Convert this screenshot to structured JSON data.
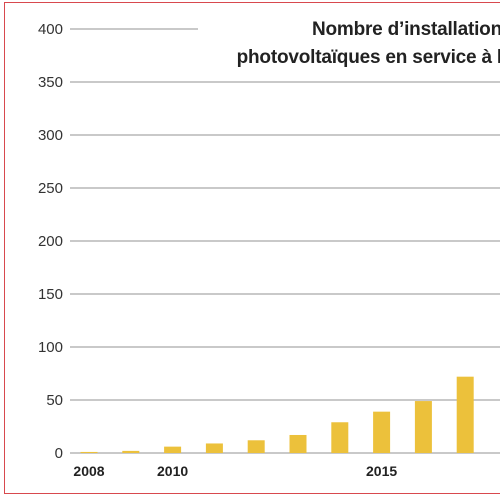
{
  "chart_data": {
    "type": "bar",
    "title_lines": [
      "Nombre d’installation",
      "photovoltaïques en service à l"
    ],
    "x": [
      2008,
      2009,
      2010,
      2011,
      2012,
      2013,
      2014,
      2015,
      2016,
      2017
    ],
    "values": [
      1,
      2,
      6,
      9,
      12,
      17,
      29,
      39,
      49,
      72
    ],
    "x_tick_labels": [
      {
        "year": 2008,
        "label": "2008"
      },
      {
        "year": 2010,
        "label": "2010"
      },
      {
        "year": 2015,
        "label": "2015"
      }
    ],
    "y_ticks": [
      0,
      50,
      100,
      150,
      200,
      250,
      300,
      350,
      400
    ],
    "ylim": [
      0,
      400
    ],
    "xlabel": "",
    "ylabel": "",
    "grid": true,
    "colors": {
      "bar": "#ecc13b",
      "grid": "#c9c9c9",
      "border": "#d8494e",
      "text": "#333333"
    }
  }
}
